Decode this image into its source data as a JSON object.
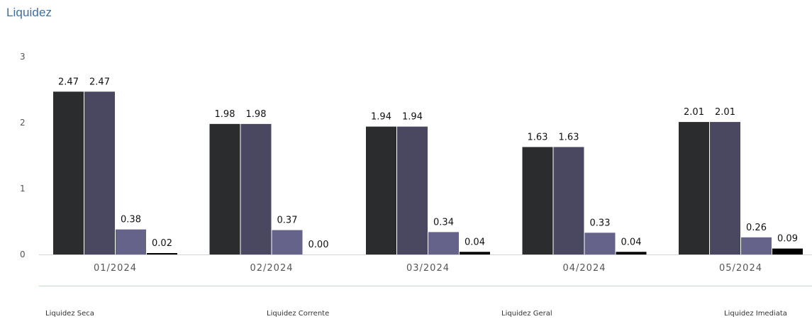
{
  "chart_data": {
    "type": "bar",
    "title": "Liquidez",
    "categories": [
      "01/2024",
      "02/2024",
      "03/2024",
      "04/2024",
      "05/2024"
    ],
    "series": [
      {
        "name": "Liquidez Seca",
        "color": "#2b2c2e",
        "values": [
          2.47,
          1.98,
          1.94,
          1.63,
          2.01
        ]
      },
      {
        "name": "Liquidez Corrente",
        "color": "#4a4761",
        "values": [
          2.47,
          1.98,
          1.94,
          1.63,
          2.01
        ]
      },
      {
        "name": "Liquidez Geral",
        "color": "#66638a",
        "values": [
          0.38,
          0.37,
          0.34,
          0.33,
          0.26
        ]
      },
      {
        "name": "Liquidez Imediata",
        "color": "#000000",
        "values": [
          0.02,
          0.0,
          0.04,
          0.04,
          0.09
        ]
      }
    ],
    "data_labels": [
      [
        "2.47",
        "1.98",
        "1.94",
        "1.63",
        "2.01"
      ],
      [
        "2.47",
        "1.98",
        "1.94",
        "1.63",
        "2.01"
      ],
      [
        "0.38",
        "0.37",
        "0.34",
        "0.33",
        "0.26"
      ],
      [
        "0.02",
        "0.00",
        "0.04",
        "0.04",
        "0.09"
      ]
    ],
    "yticks": [
      "0",
      "1",
      "2",
      "3"
    ],
    "ylim": [
      0,
      3
    ],
    "xlabel": "",
    "ylabel": "",
    "grid": false,
    "legend_position": "bottom"
  }
}
